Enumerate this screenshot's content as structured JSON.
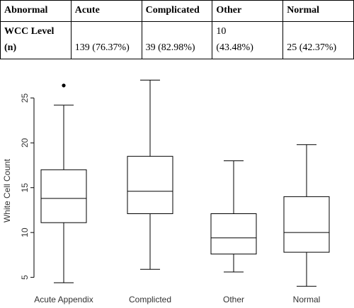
{
  "table": {
    "header_col": "Abnormal",
    "row_label_line1": "WCC Level",
    "row_label_line2": "(n)",
    "columns": [
      {
        "name": "Acute",
        "value": "139 (76.37%)"
      },
      {
        "name": "Complicated",
        "value": "39 (82.98%)"
      },
      {
        "name": "Other",
        "value_line1": "10",
        "value_line2": "(43.48%)"
      },
      {
        "name": "Normal",
        "value": "25 (42.37%)"
      }
    ]
  },
  "chart_data": {
    "type": "box",
    "ylabel": "White Cell Count",
    "ylim": [
      3.0,
      29.0
    ],
    "yticks": [
      5,
      10,
      15,
      20,
      25
    ],
    "categories": [
      "Acute Appendix",
      "Complicted",
      "Other",
      "Normal"
    ],
    "boxes": [
      {
        "whisker_low": 4.4,
        "q1": 11.1,
        "median": 13.8,
        "q3": 17.0,
        "whisker_high": 24.2,
        "outliers": [
          26.4
        ]
      },
      {
        "whisker_low": 5.9,
        "q1": 12.1,
        "median": 14.6,
        "q3": 18.5,
        "whisker_high": 27.0,
        "outliers": []
      },
      {
        "whisker_low": 5.6,
        "q1": 7.6,
        "median": 9.4,
        "q3": 12.1,
        "whisker_high": 18.0,
        "outliers": []
      },
      {
        "whisker_low": 4.0,
        "q1": 7.8,
        "median": 10.0,
        "q3": 14.0,
        "whisker_high": 19.8,
        "outliers": []
      }
    ]
  }
}
